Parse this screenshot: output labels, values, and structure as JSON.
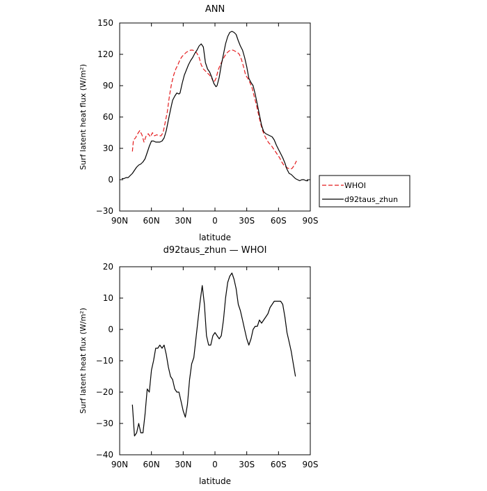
{
  "chart_data": [
    {
      "type": "line",
      "title": "ANN",
      "xlabel": "latitude",
      "ylabel": "Surf latent heat flux (W/m²)",
      "xlim": [
        90,
        -90
      ],
      "ylim": [
        -30,
        150
      ],
      "x_ticks": [
        {
          "value": 90,
          "label": "90N"
        },
        {
          "value": 60,
          "label": "60N"
        },
        {
          "value": 30,
          "label": "30N"
        },
        {
          "value": 0,
          "label": "0"
        },
        {
          "value": -30,
          "label": "30S"
        },
        {
          "value": -60,
          "label": "60S"
        },
        {
          "value": -90,
          "label": "90S"
        }
      ],
      "y_ticks": [
        {
          "value": -30,
          "label": "−30"
        },
        {
          "value": 0,
          "label": "0"
        },
        {
          "value": 30,
          "label": "30"
        },
        {
          "value": 60,
          "label": "60"
        },
        {
          "value": 90,
          "label": "90"
        },
        {
          "value": 120,
          "label": "120"
        },
        {
          "value": 150,
          "label": "150"
        }
      ],
      "legend": {
        "placement": "right"
      },
      "series": [
        {
          "name": "WHOI",
          "color": "#e41a1c",
          "style": "dashed",
          "points": [
            [
              78,
              27
            ],
            [
              77,
              38
            ],
            [
              75,
              40
            ],
            [
              73,
              44
            ],
            [
              71,
              47
            ],
            [
              69,
              43
            ],
            [
              67,
              36
            ],
            [
              65,
              42
            ],
            [
              63,
              44
            ],
            [
              61,
              41
            ],
            [
              59,
              45
            ],
            [
              57,
              42
            ],
            [
              55,
              43
            ],
            [
              53,
              42
            ],
            [
              51,
              42
            ],
            [
              49,
              45
            ],
            [
              47,
              55
            ],
            [
              45,
              65
            ],
            [
              43,
              80
            ],
            [
              41,
              92
            ],
            [
              39,
              100
            ],
            [
              37,
              106
            ],
            [
              35,
              110
            ],
            [
              33,
              115
            ],
            [
              31,
              118
            ],
            [
              29,
              120
            ],
            [
              27,
              122
            ],
            [
              25,
              123
            ],
            [
              23,
              124
            ],
            [
              21,
              124
            ],
            [
              19,
              123
            ],
            [
              17,
              121
            ],
            [
              15,
              117
            ],
            [
              13,
              110
            ],
            [
              11,
              106
            ],
            [
              9,
              104
            ],
            [
              7,
              102
            ],
            [
              5,
              100
            ],
            [
              3,
              97
            ],
            [
              1,
              93
            ],
            [
              -1,
              97
            ],
            [
              -3,
              105
            ],
            [
              -5,
              110
            ],
            [
              -7,
              114
            ],
            [
              -9,
              118
            ],
            [
              -11,
              121
            ],
            [
              -13,
              123
            ],
            [
              -15,
              124
            ],
            [
              -17,
              124
            ],
            [
              -19,
              123
            ],
            [
              -21,
              122
            ],
            [
              -23,
              120
            ],
            [
              -25,
              115
            ],
            [
              -27,
              108
            ],
            [
              -29,
              100
            ],
            [
              -31,
              97
            ],
            [
              -33,
              93
            ],
            [
              -35,
              88
            ],
            [
              -37,
              80
            ],
            [
              -39,
              72
            ],
            [
              -41,
              63
            ],
            [
              -43,
              54
            ],
            [
              -45,
              47
            ],
            [
              -47,
              42
            ],
            [
              -49,
              38
            ],
            [
              -51,
              35
            ],
            [
              -53,
              33
            ],
            [
              -55,
              30
            ],
            [
              -57,
              27
            ],
            [
              -59,
              24
            ],
            [
              -61,
              21
            ],
            [
              -63,
              17
            ],
            [
              -65,
              14
            ],
            [
              -67,
              12
            ],
            [
              -69,
              11
            ],
            [
              -71,
              10
            ],
            [
              -73,
              11
            ],
            [
              -75,
              14
            ],
            [
              -77,
              18
            ]
          ]
        },
        {
          "name": "d92taus_zhun",
          "color": "#000000",
          "style": "solid",
          "points": [
            [
              88,
              1
            ],
            [
              86,
              1
            ],
            [
              84,
              2
            ],
            [
              82,
              2
            ],
            [
              80,
              4
            ],
            [
              78,
              6
            ],
            [
              76,
              9
            ],
            [
              74,
              12
            ],
            [
              72,
              14
            ],
            [
              70,
              15
            ],
            [
              68,
              17
            ],
            [
              66,
              20
            ],
            [
              64,
              26
            ],
            [
              62,
              32
            ],
            [
              60,
              37
            ],
            [
              58,
              37
            ],
            [
              56,
              36
            ],
            [
              54,
              36
            ],
            [
              52,
              36
            ],
            [
              50,
              37
            ],
            [
              48,
              40
            ],
            [
              46,
              47
            ],
            [
              44,
              57
            ],
            [
              42,
              67
            ],
            [
              40,
              76
            ],
            [
              38,
              80
            ],
            [
              36,
              83
            ],
            [
              34,
              82
            ],
            [
              33,
              83
            ],
            [
              31,
              92
            ],
            [
              29,
              100
            ],
            [
              27,
              105
            ],
            [
              25,
              110
            ],
            [
              23,
              114
            ],
            [
              21,
              117
            ],
            [
              19,
              121
            ],
            [
              17,
              124
            ],
            [
              15,
              128
            ],
            [
              13,
              130
            ],
            [
              11,
              127
            ],
            [
              9,
              112
            ],
            [
              7,
              106
            ],
            [
              5,
              103
            ],
            [
              3,
              98
            ],
            [
              1,
              92
            ],
            [
              -1,
              89
            ],
            [
              -2,
              90
            ],
            [
              -4,
              98
            ],
            [
              -6,
              110
            ],
            [
              -8,
              120
            ],
            [
              -10,
              130
            ],
            [
              -12,
              137
            ],
            [
              -14,
              141
            ],
            [
              -16,
              142
            ],
            [
              -18,
              141
            ],
            [
              -20,
              139
            ],
            [
              -22,
              133
            ],
            [
              -24,
              128
            ],
            [
              -26,
              124
            ],
            [
              -28,
              117
            ],
            [
              -30,
              108
            ],
            [
              -32,
              97
            ],
            [
              -34,
              93
            ],
            [
              -36,
              90
            ],
            [
              -38,
              82
            ],
            [
              -40,
              72
            ],
            [
              -42,
              62
            ],
            [
              -44,
              52
            ],
            [
              -46,
              46
            ],
            [
              -48,
              44
            ],
            [
              -50,
              43
            ],
            [
              -52,
              42
            ],
            [
              -54,
              41
            ],
            [
              -56,
              38
            ],
            [
              -58,
              33
            ],
            [
              -60,
              29
            ],
            [
              -62,
              25
            ],
            [
              -64,
              21
            ],
            [
              -66,
              16
            ],
            [
              -68,
              10
            ],
            [
              -70,
              6
            ],
            [
              -72,
              5
            ],
            [
              -74,
              3
            ],
            [
              -76,
              1
            ],
            [
              -78,
              0
            ],
            [
              -80,
              -1
            ],
            [
              -82,
              0
            ],
            [
              -84,
              0
            ],
            [
              -86,
              -1
            ],
            [
              -88,
              -1
            ]
          ]
        }
      ]
    },
    {
      "type": "line",
      "title": "d92taus_zhun — WHOI",
      "xlabel": "latitude",
      "ylabel": "Surf latent heat flux (W/m²)",
      "xlim": [
        90,
        -90
      ],
      "ylim": [
        -40,
        20
      ],
      "x_ticks": [
        {
          "value": 90,
          "label": "90N"
        },
        {
          "value": 60,
          "label": "60N"
        },
        {
          "value": 30,
          "label": "30N"
        },
        {
          "value": 0,
          "label": "0"
        },
        {
          "value": -30,
          "label": "30S"
        },
        {
          "value": -60,
          "label": "60S"
        },
        {
          "value": -90,
          "label": "90S"
        }
      ],
      "y_ticks": [
        {
          "value": -40,
          "label": "−40"
        },
        {
          "value": -30,
          "label": "−30"
        },
        {
          "value": -20,
          "label": "−20"
        },
        {
          "value": -10,
          "label": "−10"
        },
        {
          "value": 0,
          "label": "0"
        },
        {
          "value": 10,
          "label": "10"
        },
        {
          "value": 20,
          "label": "20"
        }
      ],
      "series": [
        {
          "color": "#000000",
          "style": "solid",
          "points": [
            [
              78,
              -24
            ],
            [
              76,
              -34
            ],
            [
              74,
              -33
            ],
            [
              72,
              -30
            ],
            [
              70,
              -33
            ],
            [
              68,
              -33
            ],
            [
              66,
              -27
            ],
            [
              64,
              -19
            ],
            [
              62,
              -20
            ],
            [
              60,
              -13
            ],
            [
              58,
              -10
            ],
            [
              56,
              -6
            ],
            [
              54,
              -6
            ],
            [
              52,
              -5
            ],
            [
              50,
              -6
            ],
            [
              48,
              -5
            ],
            [
              46,
              -8
            ],
            [
              44,
              -12
            ],
            [
              42,
              -15
            ],
            [
              40,
              -16
            ],
            [
              38,
              -19
            ],
            [
              36,
              -20
            ],
            [
              34,
              -20
            ],
            [
              32,
              -23
            ],
            [
              30,
              -26
            ],
            [
              28,
              -28
            ],
            [
              26,
              -24
            ],
            [
              24,
              -16
            ],
            [
              22,
              -11
            ],
            [
              20,
              -9
            ],
            [
              18,
              -3
            ],
            [
              16,
              3
            ],
            [
              14,
              9
            ],
            [
              12,
              14
            ],
            [
              10,
              8
            ],
            [
              8,
              -2
            ],
            [
              6,
              -5
            ],
            [
              4,
              -5
            ],
            [
              2,
              -2
            ],
            [
              0,
              -1
            ],
            [
              -2,
              -2
            ],
            [
              -4,
              -3
            ],
            [
              -6,
              -2
            ],
            [
              -8,
              3
            ],
            [
              -10,
              10
            ],
            [
              -12,
              15
            ],
            [
              -14,
              17
            ],
            [
              -16,
              18
            ],
            [
              -18,
              16
            ],
            [
              -20,
              13
            ],
            [
              -22,
              8
            ],
            [
              -24,
              6
            ],
            [
              -26,
              3
            ],
            [
              -28,
              0
            ],
            [
              -30,
              -3
            ],
            [
              -32,
              -5
            ],
            [
              -34,
              -3
            ],
            [
              -36,
              0
            ],
            [
              -38,
              1
            ],
            [
              -40,
              1
            ],
            [
              -42,
              3
            ],
            [
              -44,
              2
            ],
            [
              -46,
              3
            ],
            [
              -48,
              4
            ],
            [
              -50,
              5
            ],
            [
              -52,
              7
            ],
            [
              -54,
              8
            ],
            [
              -56,
              9
            ],
            [
              -58,
              9
            ],
            [
              -60,
              9
            ],
            [
              -62,
              9
            ],
            [
              -64,
              8
            ],
            [
              -66,
              4
            ],
            [
              -68,
              -1
            ],
            [
              -70,
              -4
            ],
            [
              -72,
              -7
            ],
            [
              -74,
              -11
            ],
            [
              -76,
              -15
            ]
          ]
        }
      ]
    }
  ]
}
